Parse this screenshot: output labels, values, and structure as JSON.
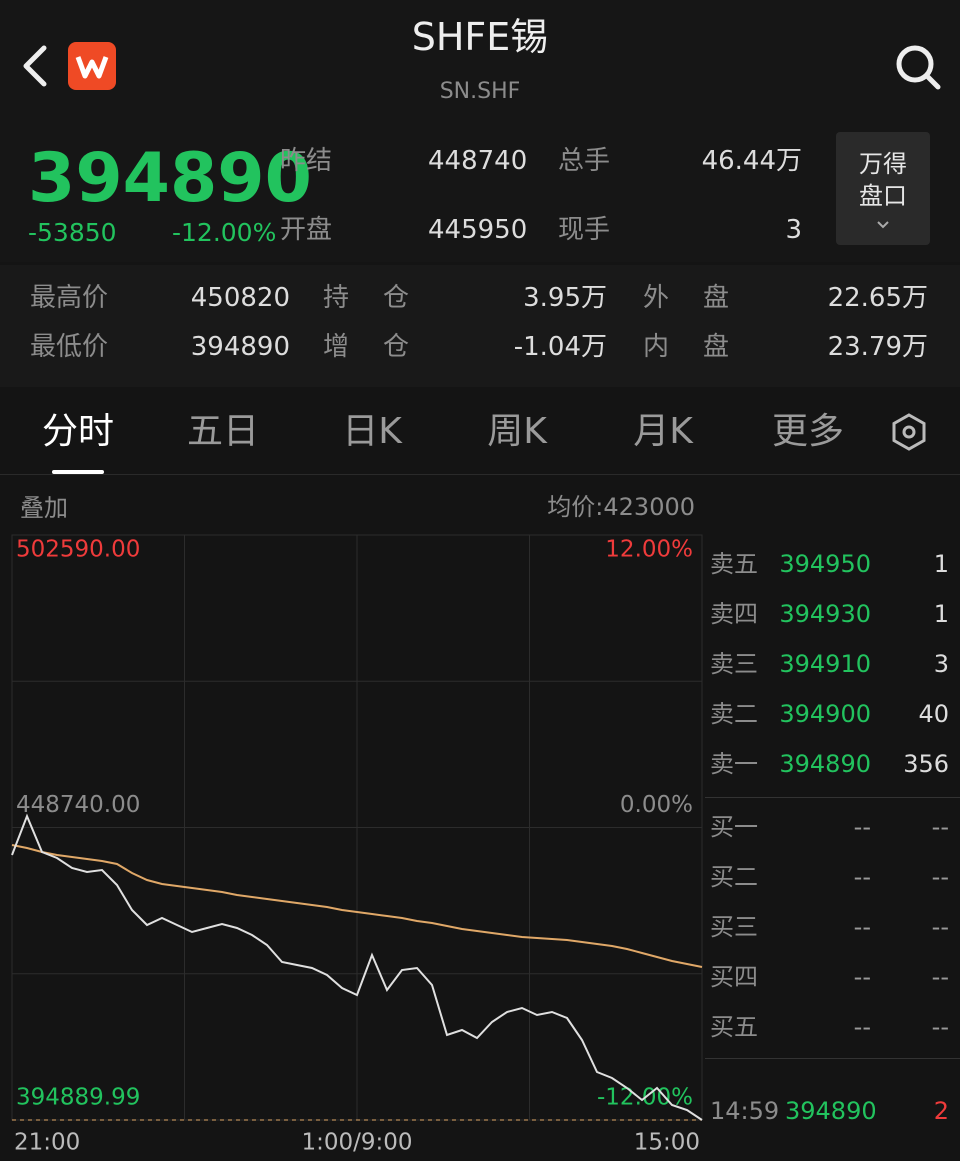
{
  "header": {
    "title": "SHFE锡",
    "code": "SN.SHF"
  },
  "quote": {
    "price": "394890",
    "change": "-53850",
    "change_pct": "-12.00%",
    "fields": [
      {
        "label": "昨结",
        "value": "448740"
      },
      {
        "label": "开盘",
        "value": "445950"
      },
      {
        "label": "总手",
        "value": "46.44万"
      },
      {
        "label": "现手",
        "value": "3"
      }
    ],
    "button": [
      "万得",
      "盘口"
    ]
  },
  "stats": {
    "rows": [
      [
        "最高价",
        "450820",
        "持仓",
        "3.95万",
        "外盘",
        "22.65万"
      ],
      [
        "最低价",
        "394890",
        "增仓",
        "-1.04万",
        "内盘",
        "23.79万"
      ]
    ]
  },
  "tabs": {
    "items": [
      "分时",
      "五日",
      "日K",
      "周K",
      "月K",
      "更多"
    ],
    "active": 0
  },
  "chart_data": {
    "type": "line",
    "overlay_label": "叠加",
    "avg_label": "均价:423000",
    "ylim": [
      394889.99,
      502590.0
    ],
    "yticks": [
      {
        "value": 502590.0,
        "label": "502590.00"
      },
      {
        "value": 448740.0,
        "label": "448740.00"
      },
      {
        "value": 394889.99,
        "label": "394889.99"
      }
    ],
    "y2lim": [
      -12,
      12
    ],
    "y2ticks": [
      {
        "value": 12,
        "label": "12.00%"
      },
      {
        "value": 0,
        "label": "0.00%"
      },
      {
        "value": -12,
        "label": "-12.00%"
      }
    ],
    "x_labels": [
      "21:00",
      "1:00/9:00",
      "15:00"
    ],
    "grid": true,
    "series": [
      {
        "color": "#e0e0e0",
        "values": [
          443680,
          450820,
          444230,
          443130,
          441290,
          440550,
          440920,
          438160,
          433550,
          430790,
          432080,
          430790,
          429500,
          430240,
          430980,
          430240,
          428950,
          427110,
          423980,
          423430,
          422880,
          421590,
          419190,
          417900,
          425270,
          418820,
          422510,
          422880,
          419750,
          410540,
          411460,
          409990,
          412930,
          414770,
          415510,
          414220,
          414770,
          413670,
          409620,
          403730,
          402620,
          400780,
          398570,
          400780,
          397650,
          396730,
          394890
        ]
      },
      {
        "color": "#e0a868",
        "values": [
          445520,
          444970,
          444230,
          443680,
          443310,
          442940,
          442570,
          442020,
          440360,
          439080,
          438340,
          437970,
          437600,
          437230,
          436870,
          436310,
          435950,
          435580,
          435210,
          434840,
          434470,
          434110,
          433550,
          433180,
          432820,
          432450,
          432080,
          431530,
          431160,
          430610,
          430060,
          429690,
          429320,
          428950,
          428580,
          428400,
          428210,
          428030,
          427660,
          427290,
          426930,
          426370,
          425640,
          424900,
          424160,
          423610,
          423060
        ]
      }
    ]
  },
  "order_book": {
    "asks": [
      {
        "label": "卖五",
        "price": "394950",
        "vol": "1"
      },
      {
        "label": "卖四",
        "price": "394930",
        "vol": "1"
      },
      {
        "label": "卖三",
        "price": "394910",
        "vol": "3"
      },
      {
        "label": "卖二",
        "price": "394900",
        "vol": "40"
      },
      {
        "label": "卖一",
        "price": "394890",
        "vol": "356"
      }
    ],
    "bids": [
      {
        "label": "买一",
        "price": "--",
        "vol": "--"
      },
      {
        "label": "买二",
        "price": "--",
        "vol": "--"
      },
      {
        "label": "买三",
        "price": "--",
        "vol": "--"
      },
      {
        "label": "买四",
        "price": "--",
        "vol": "--"
      },
      {
        "label": "买五",
        "price": "--",
        "vol": "--"
      }
    ],
    "last_trade": {
      "time": "14:59",
      "price": "394890",
      "vol": "2"
    }
  }
}
